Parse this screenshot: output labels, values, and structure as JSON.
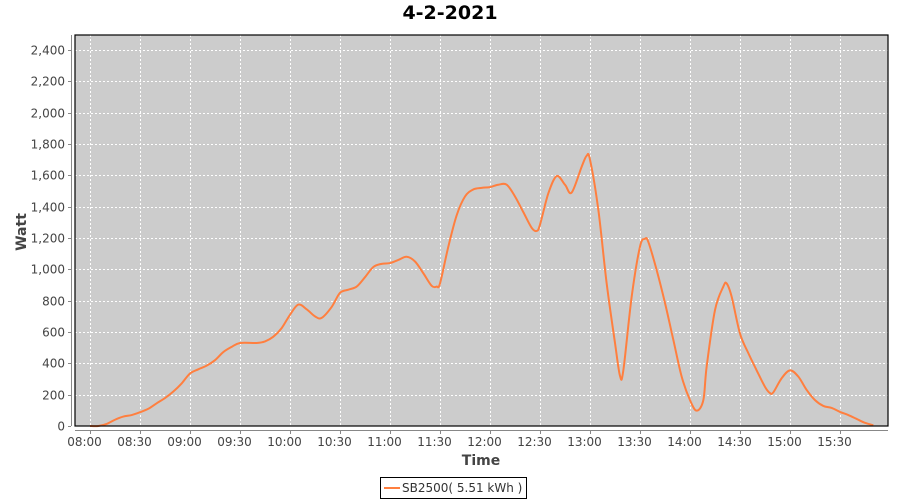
{
  "chart_data": {
    "type": "line",
    "title": "4-2-2021",
    "xlabel": "Time",
    "ylabel": "Watt",
    "ylim": [
      0,
      2500
    ],
    "yticks": [
      "0",
      "200",
      "400",
      "600",
      "800",
      "1,000",
      "1,200",
      "1,400",
      "1,600",
      "1,800",
      "2,000",
      "2,200",
      "2,400"
    ],
    "ytick_values": [
      0,
      200,
      400,
      600,
      800,
      1000,
      1200,
      1400,
      1600,
      1800,
      2000,
      2200,
      2400
    ],
    "xticks": [
      "08:00",
      "08:30",
      "09:00",
      "09:30",
      "10:00",
      "10:30",
      "11:00",
      "11:30",
      "12:00",
      "12:30",
      "13:00",
      "13:30",
      "14:00",
      "14:30",
      "15:00",
      "15:30"
    ],
    "xlim": [
      "07:54",
      "15:58"
    ],
    "grid": true,
    "legend_placement": "bottom",
    "colors": {
      "series": "#ff7f3f",
      "plot_bg": "#cccccc",
      "grid": "#ffffff"
    },
    "series": [
      {
        "name": "SB2500( 5.51 kWh )",
        "x": [
          "08:00",
          "08:05",
          "08:10",
          "08:15",
          "08:20",
          "08:25",
          "08:30",
          "08:35",
          "08:40",
          "08:45",
          "08:50",
          "08:55",
          "09:00",
          "09:05",
          "09:10",
          "09:15",
          "09:20",
          "09:25",
          "09:30",
          "09:40",
          "09:45",
          "09:50",
          "09:55",
          "10:00",
          "10:05",
          "10:10",
          "10:15",
          "10:19",
          "10:25",
          "10:30",
          "10:35",
          "10:40",
          "10:45",
          "10:50",
          "10:55",
          "11:00",
          "11:05",
          "11:10",
          "11:15",
          "11:20",
          "11:25",
          "11:28",
          "11:30",
          "11:35",
          "11:40",
          "11:45",
          "11:50",
          "11:55",
          "12:00",
          "12:05",
          "12:10",
          "12:15",
          "12:20",
          "12:25",
          "12:28",
          "12:30",
          "12:35",
          "12:40",
          "12:45",
          "12:49",
          "12:55",
          "12:58",
          "13:00",
          "13:05",
          "13:10",
          "13:15",
          "13:18",
          "13:20",
          "13:25",
          "13:30",
          "13:33",
          "13:35",
          "13:40",
          "13:45",
          "13:50",
          "13:55",
          "14:00",
          "14:04",
          "14:08",
          "14:10",
          "14:15",
          "14:20",
          "14:22",
          "14:25",
          "14:30",
          "14:35",
          "14:40",
          "14:45",
          "14:48",
          "14:50",
          "14:55",
          "15:00",
          "15:05",
          "15:10",
          "15:15",
          "15:20",
          "15:25",
          "15:30",
          "15:35",
          "15:40",
          "15:45",
          "15:50"
        ],
        "values": [
          0,
          0,
          13,
          40,
          60,
          70,
          88,
          110,
          145,
          178,
          220,
          272,
          335,
          362,
          385,
          420,
          472,
          505,
          530,
          530,
          540,
          570,
          625,
          710,
          775,
          745,
          700,
          690,
          760,
          850,
          870,
          890,
          950,
          1015,
          1035,
          1040,
          1060,
          1080,
          1050,
          975,
          895,
          890,
          910,
          1145,
          1345,
          1465,
          1510,
          1520,
          1525,
          1540,
          1540,
          1465,
          1365,
          1265,
          1245,
          1285,
          1485,
          1595,
          1540,
          1490,
          1655,
          1725,
          1700,
          1380,
          910,
          530,
          320,
          355,
          825,
          1145,
          1195,
          1175,
          995,
          785,
          550,
          315,
          165,
          98,
          165,
          380,
          740,
          890,
          910,
          825,
          590,
          465,
          355,
          250,
          210,
          215,
          305,
          355,
          315,
          230,
          165,
          128,
          115,
          90,
          70,
          45,
          20,
          5
        ]
      }
    ]
  }
}
